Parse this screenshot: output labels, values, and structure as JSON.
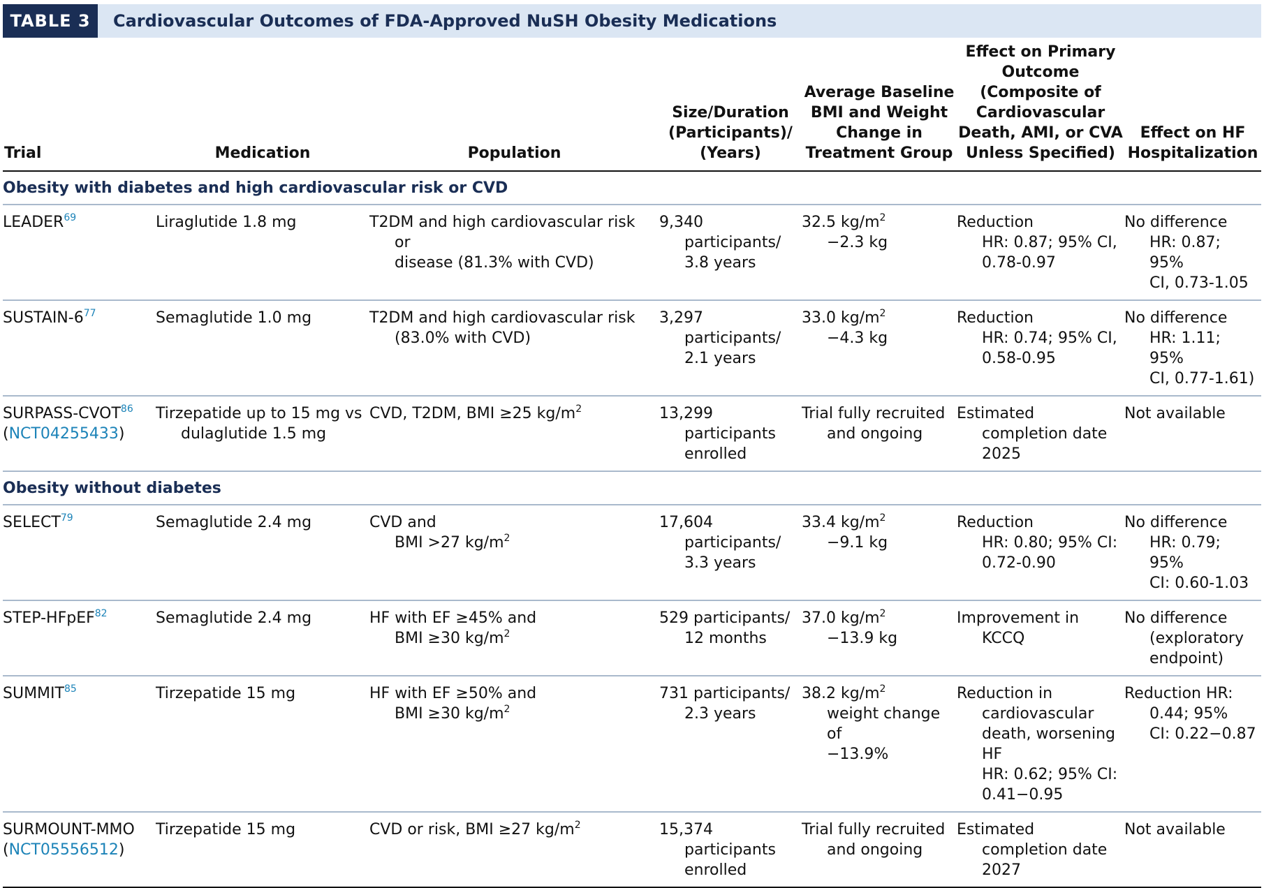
{
  "banner": {
    "tag": "TABLE 3",
    "title": "Cardiovascular Outcomes of FDA-Approved NuSH Obesity Medications"
  },
  "columns": {
    "trial": "Trial",
    "medication": "Medication",
    "population": "Population",
    "size": [
      "Size/Duration",
      "(Participants)/",
      "(Years)"
    ],
    "bmi": [
      "Average Baseline",
      "BMI and Weight",
      "Change in",
      "Treatment Group"
    ],
    "primary": [
      "Effect on Primary",
      "Outcome",
      "(Composite of",
      "Cardiovascular",
      "Death, AMI, or CVA",
      "Unless Specified)"
    ],
    "hf": [
      "Effect on HF",
      "Hospitalization"
    ]
  },
  "sections": [
    {
      "label": "Obesity with diabetes and high cardiovascular risk or CVD",
      "rows": [
        {
          "trial": "LEADER",
          "ref": "69",
          "trial_id": "",
          "medication": [
            "Liraglutide 1.8 mg"
          ],
          "population": [
            "T2DM and high cardiovascular risk or",
            "disease (81.3% with CVD)"
          ],
          "size": [
            "9,340",
            "participants/",
            "3.8 years"
          ],
          "bmi": [
            "32.5 kg/m",
            "−2.3 kg"
          ],
          "primary": [
            "Reduction",
            "HR: 0.87; 95% CI,",
            "0.78-0.97"
          ],
          "hf": [
            "No difference",
            "HR: 0.87; 95%",
            "CI, 0.73-1.05"
          ]
        },
        {
          "trial": "SUSTAIN-6",
          "ref": "77",
          "trial_id": "",
          "medication": [
            "Semaglutide 1.0 mg"
          ],
          "population": [
            "T2DM and high cardiovascular risk",
            "(83.0% with CVD)"
          ],
          "size": [
            "3,297",
            "participants/",
            "2.1 years"
          ],
          "bmi": [
            "33.0 kg/m",
            "−4.3 kg"
          ],
          "primary": [
            "Reduction",
            "HR: 0.74; 95% CI,",
            "0.58-0.95"
          ],
          "hf": [
            "No difference",
            "HR: 1.11; 95%",
            "CI, 0.77-1.61)"
          ]
        },
        {
          "trial": "SURPASS-CVOT",
          "ref": "86",
          "trial_id": "NCT04255433",
          "medication": [
            "Tirzepatide up to 15 mg vs",
            "dulaglutide 1.5 mg"
          ],
          "population": [
            "CVD, T2DM, BMI ≥25 kg/m"
          ],
          "size": [
            "13,299",
            "participants",
            "enrolled"
          ],
          "bmi": [
            "Trial fully recruited",
            "and ongoing"
          ],
          "primary": [
            "Estimated",
            "completion date",
            "2025"
          ],
          "hf": [
            "Not available"
          ]
        }
      ]
    },
    {
      "label": "Obesity without diabetes",
      "rows": [
        {
          "trial": "SELECT",
          "ref": "79",
          "trial_id": "",
          "medication": [
            "Semaglutide 2.4 mg"
          ],
          "population": [
            "CVD and",
            "BMI >27 kg/m"
          ],
          "size": [
            "17,604",
            "participants/",
            "3.3 years"
          ],
          "bmi": [
            "33.4 kg/m",
            "−9.1 kg"
          ],
          "primary": [
            "Reduction",
            "HR: 0.80; 95% CI:",
            "0.72-0.90"
          ],
          "hf": [
            "No difference",
            "HR: 0.79; 95%",
            "CI: 0.60-1.03"
          ]
        },
        {
          "trial": "STEP-HFpEF",
          "ref": "82",
          "trial_id": "",
          "medication": [
            "Semaglutide 2.4 mg"
          ],
          "population": [
            "HF with EF ≥45% and",
            "BMI ≥30 kg/m"
          ],
          "size": [
            "529 participants/",
            "12 months"
          ],
          "bmi": [
            "37.0 kg/m",
            "−13.9 kg"
          ],
          "primary": [
            "Improvement in",
            "KCCQ"
          ],
          "hf": [
            "No difference",
            "(exploratory",
            "endpoint)"
          ]
        },
        {
          "trial": "SUMMIT",
          "ref": "85",
          "trial_id": "",
          "medication": [
            "Tirzepatide 15 mg"
          ],
          "population": [
            "HF with EF ≥50% and",
            "BMI ≥30 kg/m"
          ],
          "size": [
            "731 participants/",
            "2.3 years"
          ],
          "bmi": [
            "38.2 kg/m",
            "weight change of",
            "−13.9%"
          ],
          "primary": [
            "Reduction in",
            "cardiovascular",
            "death, worsening",
            "HF",
            "HR: 0.62; 95% CI:",
            "0.41−0.95"
          ],
          "hf": [
            "Reduction HR:",
            "0.44; 95%",
            "CI: 0.22−0.87"
          ]
        },
        {
          "trial": "SURMOUNT-MMO",
          "ref": "",
          "trial_id": "NCT05556512",
          "medication": [
            "Tirzepatide 15 mg"
          ],
          "population": [
            "CVD or risk, BMI ≥27 kg/m"
          ],
          "size": [
            "15,374",
            "participants",
            "enrolled"
          ],
          "bmi": [
            "Trial fully recruited",
            "and ongoing"
          ],
          "primary": [
            "Estimated",
            "completion date",
            "2027"
          ],
          "hf": [
            "Not available"
          ]
        }
      ]
    }
  ]
}
